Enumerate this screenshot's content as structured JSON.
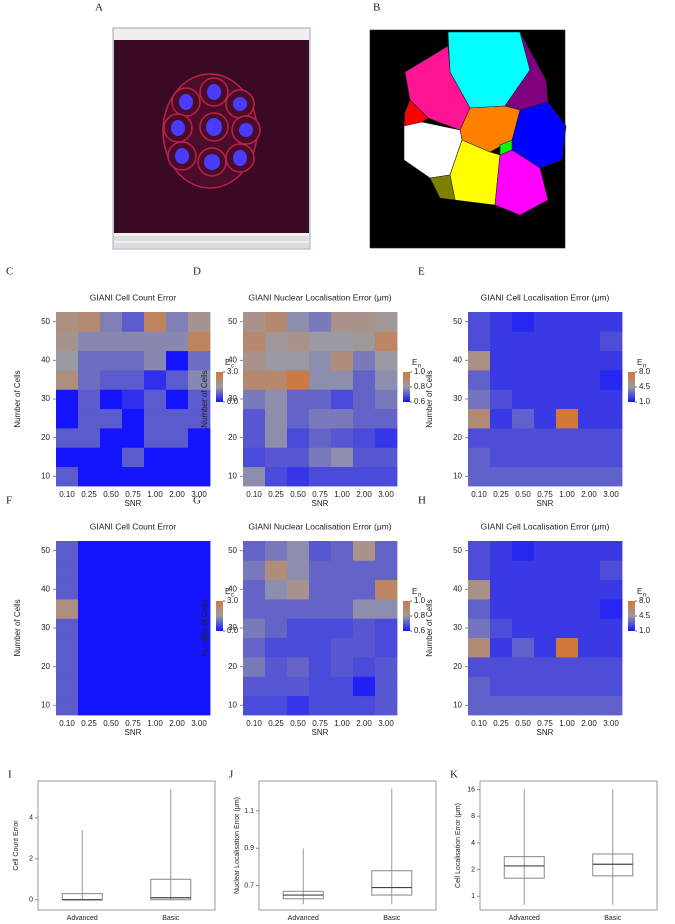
{
  "panel_labels": {
    "image_a": "A",
    "image_b": "B"
  },
  "chart_data": [
    {
      "type": "heatmap",
      "panel": "C",
      "title": "GIANI Cell Count Error",
      "xlabel": "SNR",
      "ylabel": "Number of Cells",
      "x": [
        "0.10",
        "0.25",
        "0.50",
        "0.75",
        "1.00",
        "2.00",
        "3.00"
      ],
      "y": [
        10,
        15,
        20,
        25,
        30,
        35,
        40,
        45,
        50
      ],
      "ylim": [
        7.5,
        52.5
      ],
      "yticks": [
        10,
        20,
        30,
        40,
        50
      ],
      "z": [
        [
          0.8,
          0,
          0,
          0,
          0,
          0,
          0
        ],
        [
          0,
          0,
          0,
          0.8,
          0,
          0,
          0
        ],
        [
          0.8,
          0.8,
          0,
          0,
          0.8,
          0.8,
          0
        ],
        [
          0,
          0.8,
          0.8,
          0,
          0.8,
          0.8,
          0.8
        ],
        [
          0,
          0.8,
          0,
          0.3,
          0.8,
          0,
          0.8
        ],
        [
          2.0,
          1.0,
          0.8,
          0.8,
          0.3,
          0.8,
          1.3
        ],
        [
          1.5,
          1.0,
          1.0,
          1.0,
          1.3,
          0,
          1.0
        ],
        [
          1.8,
          1.3,
          1.3,
          1.3,
          1.3,
          1.3,
          2.5
        ],
        [
          2.0,
          2.2,
          1.2,
          0.8,
          2.5,
          1.2,
          1.8
        ]
      ],
      "clim": [
        0,
        3
      ],
      "cticks": [
        {
          "value": 3,
          "label": "3.0"
        },
        {
          "value": 0,
          "label": "0.0"
        }
      ],
      "colorbar_label": "E",
      "colorbar_sub": "c"
    },
    {
      "type": "heatmap",
      "panel": "D",
      "title": "GIANI Nuclear Localisation Error (μm)",
      "xlabel": "SNR",
      "ylabel": "Number of Cells",
      "x": [
        "0.10",
        "0.25",
        "0.50",
        "0.75",
        "1.00",
        "2.00",
        "3.00"
      ],
      "y": [
        10,
        15,
        20,
        25,
        30,
        35,
        40,
        45,
        50
      ],
      "ylim": [
        7.5,
        52.5
      ],
      "yticks": [
        10,
        20,
        30,
        40,
        50
      ],
      "z": [
        [
          0.78,
          0.68,
          0.65,
          0.68,
          0.68,
          0.68,
          0.68
        ],
        [
          0.68,
          0.7,
          0.7,
          0.75,
          0.78,
          0.7,
          0.7
        ],
        [
          0.7,
          0.78,
          0.68,
          0.72,
          0.7,
          0.68,
          0.65
        ],
        [
          0.7,
          0.78,
          0.72,
          0.75,
          0.75,
          0.72,
          0.72
        ],
        [
          0.75,
          0.78,
          0.72,
          0.72,
          0.68,
          0.72,
          0.75
        ],
        [
          0.9,
          0.9,
          0.98,
          0.78,
          0.78,
          0.72,
          0.78
        ],
        [
          0.85,
          0.8,
          0.8,
          0.78,
          0.88,
          0.75,
          0.8
        ],
        [
          0.9,
          0.82,
          0.85,
          0.8,
          0.8,
          0.82,
          0.92
        ],
        [
          0.85,
          0.9,
          0.78,
          0.75,
          0.85,
          0.85,
          0.82
        ]
      ],
      "clim": [
        0.6,
        1.0
      ],
      "cticks": [
        {
          "value": 1.0,
          "label": "1.0"
        },
        0.8,
        0.6
      ],
      "colorbar_label": "E",
      "colorbar_sub": "n"
    },
    {
      "type": "heatmap",
      "panel": "E",
      "title": "GIANI Cell Localisation Error (μm)",
      "xlabel": "SNR",
      "ylabel": "Number of Cells",
      "x": [
        "0.10",
        "0.25",
        "0.50",
        "0.75",
        "1.00",
        "2.00",
        "3.00"
      ],
      "y": [
        10,
        15,
        20,
        25,
        30,
        35,
        40,
        45,
        50
      ],
      "ylim": [
        7.5,
        52.5
      ],
      "yticks": [
        10,
        20,
        30,
        40,
        50
      ],
      "z": [
        [
          3,
          3,
          3,
          3,
          3,
          3,
          3
        ],
        [
          3,
          2.5,
          2.5,
          2.5,
          2.5,
          2.5,
          2.5
        ],
        [
          2.5,
          2.5,
          2.5,
          2.5,
          2.5,
          2.5,
          2.5
        ],
        [
          6,
          2,
          3,
          2,
          8,
          2,
          2
        ],
        [
          3.5,
          2.5,
          2,
          2,
          2,
          2,
          2
        ],
        [
          3,
          2,
          2,
          2,
          2,
          2,
          1.5
        ],
        [
          5.5,
          2,
          2,
          2,
          2,
          2,
          2
        ],
        [
          2.5,
          2,
          2,
          2,
          2,
          2,
          2.5
        ],
        [
          2.5,
          2,
          1.5,
          2,
          2,
          2,
          2
        ]
      ],
      "clim": [
        1,
        8
      ],
      "cticks": [
        {
          "value": 8,
          "label": "8.0"
        },
        4.5,
        {
          "value": 1,
          "label": "1.0"
        }
      ],
      "colorbar_label": "E",
      "colorbar_sub": "n"
    },
    {
      "type": "heatmap",
      "panel": "F",
      "title": "GIANI Cell Count Error",
      "xlabel": "SNR",
      "ylabel": "Number of Cells",
      "x": [
        "0.10",
        "0.25",
        "0.50",
        "0.75",
        "1.00",
        "2.00",
        "3.00"
      ],
      "y": [
        10,
        15,
        20,
        25,
        30,
        35,
        40,
        45,
        50
      ],
      "ylim": [
        7.5,
        52.5
      ],
      "yticks": [
        10,
        20,
        30,
        40,
        50
      ],
      "z": [
        [
          0.8,
          0,
          0,
          0,
          0,
          0,
          0
        ],
        [
          0.8,
          0,
          0,
          0,
          0,
          0,
          0
        ],
        [
          0.8,
          0,
          0,
          0,
          0,
          0,
          0
        ],
        [
          0.8,
          0,
          0,
          0,
          0,
          0,
          0
        ],
        [
          0.8,
          0,
          0,
          0,
          0,
          0,
          0
        ],
        [
          2.0,
          0,
          0,
          0,
          0,
          0,
          0
        ],
        [
          0.8,
          0,
          0,
          0,
          0,
          0,
          0
        ],
        [
          0.8,
          0,
          0,
          0,
          0,
          0,
          0
        ],
        [
          0.8,
          0,
          0,
          0,
          0,
          0,
          0
        ]
      ],
      "clim": [
        0,
        3
      ],
      "cticks": [
        {
          "value": 3,
          "label": "3.0"
        },
        {
          "value": 0,
          "label": "0.0"
        }
      ],
      "colorbar_label": "E",
      "colorbar_sub": "c"
    },
    {
      "type": "heatmap",
      "panel": "G",
      "title": "GIANI Nuclear Localisation Error (μm)",
      "xlabel": "SNR",
      "ylabel": "Number of Cells",
      "x": [
        "0.10",
        "0.25",
        "0.50",
        "0.75",
        "1.00",
        "2.00",
        "3.00"
      ],
      "y": [
        10,
        15,
        20,
        25,
        30,
        35,
        40,
        45,
        50
      ],
      "ylim": [
        7.5,
        52.5
      ],
      "yticks": [
        10,
        20,
        30,
        40,
        50
      ],
      "z": [
        [
          0.68,
          0.68,
          0.65,
          0.68,
          0.68,
          0.68,
          0.7
        ],
        [
          0.7,
          0.7,
          0.7,
          0.68,
          0.68,
          0.62,
          0.7
        ],
        [
          0.75,
          0.7,
          0.72,
          0.68,
          0.7,
          0.68,
          0.7
        ],
        [
          0.72,
          0.68,
          0.68,
          0.68,
          0.7,
          0.7,
          0.68
        ],
        [
          0.75,
          0.72,
          0.68,
          0.68,
          0.68,
          0.7,
          0.68
        ],
        [
          0.72,
          0.72,
          0.72,
          0.72,
          0.72,
          0.78,
          0.78
        ],
        [
          0.72,
          0.78,
          0.85,
          0.72,
          0.72,
          0.72,
          0.92
        ],
        [
          0.75,
          0.88,
          0.78,
          0.72,
          0.72,
          0.72,
          0.72
        ],
        [
          0.72,
          0.75,
          0.78,
          0.7,
          0.72,
          0.85,
          0.72
        ]
      ],
      "clim": [
        0.6,
        1.0
      ],
      "cticks": [
        {
          "value": 1.0,
          "label": "1.0"
        },
        0.8,
        0.6
      ],
      "colorbar_label": "E",
      "colorbar_sub": "n"
    },
    {
      "type": "heatmap",
      "panel": "H",
      "title": "GIANI Cell Localisation Error (μm)",
      "xlabel": "SNR",
      "ylabel": "Number of Cells",
      "x": [
        "0.10",
        "0.25",
        "0.50",
        "0.75",
        "1.00",
        "2.00",
        "3.00"
      ],
      "y": [
        10,
        15,
        20,
        25,
        30,
        35,
        40,
        45,
        50
      ],
      "ylim": [
        7.5,
        52.5
      ],
      "yticks": [
        10,
        20,
        30,
        40,
        50
      ],
      "z": [
        [
          3,
          3,
          3,
          3,
          3,
          3,
          3
        ],
        [
          3,
          2.5,
          2.5,
          2.5,
          2.5,
          2.5,
          2.5
        ],
        [
          2.5,
          2.5,
          2.5,
          2.5,
          2.5,
          2.5,
          2.5
        ],
        [
          6,
          2,
          3,
          2,
          8,
          2,
          2
        ],
        [
          3.5,
          2.5,
          2,
          2,
          2,
          2,
          2
        ],
        [
          3,
          2,
          2,
          2,
          2,
          2,
          1.5
        ],
        [
          5.5,
          2,
          2,
          2,
          2,
          2,
          2
        ],
        [
          2.5,
          2,
          2,
          2,
          2,
          2,
          2.5
        ],
        [
          2.5,
          2,
          1.5,
          2,
          2,
          2,
          2
        ]
      ],
      "clim": [
        1,
        8
      ],
      "cticks": [
        {
          "value": 8,
          "label": "8.0"
        },
        4.5,
        {
          "value": 1,
          "label": "1.0"
        }
      ],
      "colorbar_label": "E",
      "colorbar_sub": "n"
    },
    {
      "type": "box",
      "panel": "I",
      "ylabel": "Cell Count Error",
      "categories": [
        "Advanced",
        "Basic"
      ],
      "min": [
        0,
        0
      ],
      "q1": [
        0,
        0
      ],
      "median": [
        0,
        0.1
      ],
      "q3": [
        0.3,
        1.0
      ],
      "max": [
        3.4,
        5.4
      ],
      "ylim": [
        -0.5,
        5.8
      ],
      "yticks": [
        0,
        2,
        4
      ]
    },
    {
      "type": "box",
      "panel": "J",
      "ylabel": "Nuclear Localisation Error (μm)",
      "categories": [
        "Advanced",
        "Basic"
      ],
      "min": [
        0.6,
        0.6
      ],
      "q1": [
        0.63,
        0.65
      ],
      "median": [
        0.65,
        0.69
      ],
      "q3": [
        0.67,
        0.78
      ],
      "max": [
        0.9,
        1.22
      ],
      "ylim": [
        0.57,
        1.26
      ],
      "yticks": [
        0.7,
        0.9,
        1.1
      ]
    },
    {
      "type": "box",
      "panel": "K",
      "ylabel": "Cell Localisation Error (μm)",
      "categories": [
        "Advanced",
        "Basic"
      ],
      "min": [
        0.8,
        0.8
      ],
      "q1": [
        1.6,
        1.7
      ],
      "median": [
        2.2,
        2.3
      ],
      "q3": [
        2.8,
        3.0
      ],
      "max": [
        16,
        16
      ],
      "ylim": [
        0.7,
        20
      ],
      "yticks": [
        1,
        2,
        4,
        8,
        16
      ],
      "log_y": true
    }
  ]
}
